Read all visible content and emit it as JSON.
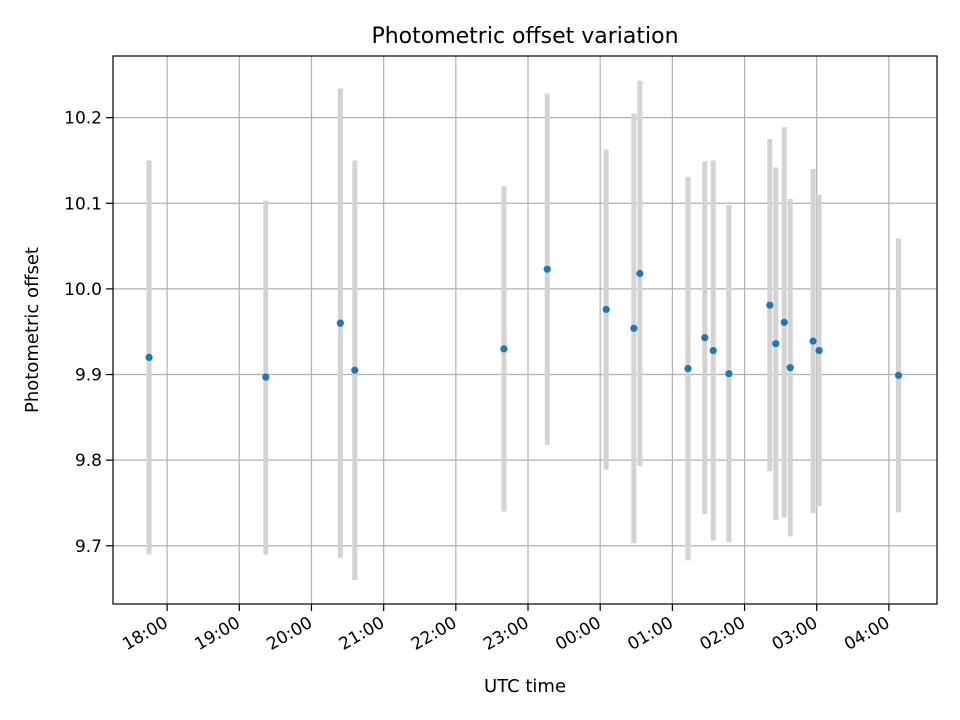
{
  "chart_data": {
    "type": "scatter",
    "title": "Photometric offset variation",
    "xlabel": "UTC time",
    "ylabel": "Photometric offset",
    "x_axis_type": "time",
    "xlim": [
      "17:15",
      "04:40"
    ],
    "ylim": [
      9.632,
      10.272
    ],
    "x_ticks": [
      "18:00",
      "19:00",
      "20:00",
      "21:00",
      "22:00",
      "23:00",
      "00:00",
      "01:00",
      "02:00",
      "03:00",
      "04:00"
    ],
    "y_ticks": [
      "9.7",
      "9.8",
      "9.9",
      "10.0",
      "10.1",
      "10.2"
    ],
    "grid": true,
    "point_color": "#1f77b4",
    "errorbar_color": "#d3d3d3",
    "points": [
      {
        "t": "17:45",
        "y": 9.92,
        "lo": 9.69,
        "hi": 10.15
      },
      {
        "t": "19:22",
        "y": 9.897,
        "lo": 9.69,
        "hi": 10.103
      },
      {
        "t": "20:24",
        "y": 9.96,
        "lo": 9.686,
        "hi": 10.234
      },
      {
        "t": "20:36",
        "y": 9.905,
        "lo": 9.66,
        "hi": 10.15
      },
      {
        "t": "22:40",
        "y": 9.93,
        "lo": 9.74,
        "hi": 10.12
      },
      {
        "t": "23:16",
        "y": 10.023,
        "lo": 9.818,
        "hi": 10.228
      },
      {
        "t": "00:05",
        "y": 9.976,
        "lo": 9.789,
        "hi": 10.163
      },
      {
        "t": "00:28",
        "y": 9.954,
        "lo": 9.703,
        "hi": 10.205
      },
      {
        "t": "00:33",
        "y": 10.018,
        "lo": 9.793,
        "hi": 10.243
      },
      {
        "t": "01:13",
        "y": 9.907,
        "lo": 9.683,
        "hi": 10.131
      },
      {
        "t": "01:27",
        "y": 9.943,
        "lo": 9.737,
        "hi": 10.149
      },
      {
        "t": "01:34",
        "y": 9.928,
        "lo": 9.706,
        "hi": 10.15
      },
      {
        "t": "01:47",
        "y": 9.901,
        "lo": 9.704,
        "hi": 10.098
      },
      {
        "t": "02:21",
        "y": 9.981,
        "lo": 9.787,
        "hi": 10.175
      },
      {
        "t": "02:26",
        "y": 9.936,
        "lo": 9.73,
        "hi": 10.142
      },
      {
        "t": "02:33",
        "y": 9.961,
        "lo": 9.733,
        "hi": 10.189
      },
      {
        "t": "02:38",
        "y": 9.908,
        "lo": 9.711,
        "hi": 10.105
      },
      {
        "t": "02:57",
        "y": 9.939,
        "lo": 9.738,
        "hi": 10.14
      },
      {
        "t": "03:02",
        "y": 9.928,
        "lo": 9.746,
        "hi": 10.11
      },
      {
        "t": "04:08",
        "y": 9.899,
        "lo": 9.739,
        "hi": 10.059
      }
    ]
  }
}
